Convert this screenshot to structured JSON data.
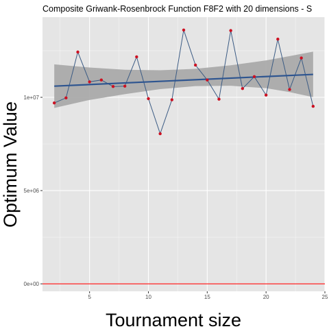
{
  "chart_data": {
    "type": "line",
    "title": "Composite Griwank-Rosenbrock Function F8F2 with 20 dimensions -  S",
    "xlabel": "Tournament size",
    "ylabel": "Optimum Value",
    "xlim": [
      1.0,
      25.0
    ],
    "ylim": [
      -400000,
      14300000
    ],
    "x_ticks": [
      5,
      10,
      15,
      20,
      25
    ],
    "x_tick_labels": [
      "5",
      "10",
      "15",
      "20",
      "25"
    ],
    "y_ticks": [
      0,
      5000000,
      10000000
    ],
    "y_tick_labels": [
      "0e+00",
      "5e+06",
      "1e+07"
    ],
    "grid": true,
    "legend": "none",
    "series": [
      {
        "x": [
          2,
          3,
          4,
          5,
          6,
          7,
          8,
          9,
          10,
          11,
          12,
          13,
          14,
          15,
          16,
          17,
          18,
          19,
          20,
          21,
          22,
          23,
          24
        ],
        "values": [
          9700000,
          9970000,
          12430000,
          10830000,
          10930000,
          10580000,
          10600000,
          12170000,
          9930000,
          8050000,
          9870000,
          13610000,
          11730000,
          10930000,
          9900000,
          13580000,
          10470000,
          11110000,
          10120000,
          13120000,
          10420000,
          12110000,
          9520000
        ]
      }
    ],
    "trend_line": {
      "x": [
        2,
        24
      ],
      "y": [
        10600000,
        11230000
      ]
    },
    "confidence_band": {
      "x": [
        2,
        5,
        8,
        11,
        14,
        17,
        20,
        22,
        24
      ],
      "upper": [
        11770000,
        11600000,
        11480000,
        11450000,
        11530000,
        11720000,
        11980000,
        12210000,
        12450000
      ],
      "lower": [
        9430000,
        9860000,
        10170000,
        10440000,
        10600000,
        10620000,
        10490000,
        10280000,
        10010000
      ]
    },
    "reference_line": {
      "y": 0
    },
    "colors": {
      "panel_background": "#e5e5e5",
      "grid_major": "#ffffff",
      "series_line": "#3b5b84",
      "points": "#cc1122",
      "trend": "#2e5590",
      "band": "#a6a6a6",
      "reference": "#ff2020"
    }
  }
}
